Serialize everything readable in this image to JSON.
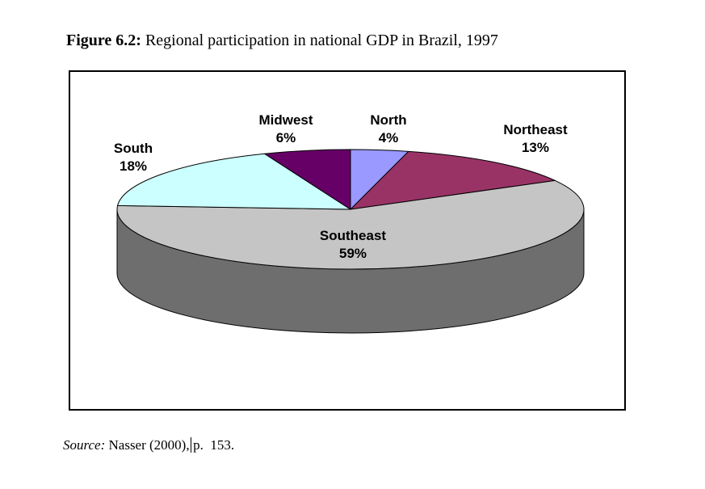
{
  "caption": {
    "prefix": "Figure 6.2:",
    "text": "Regional participation in national GDP in Brazil, 1997"
  },
  "source": {
    "label": "Source:",
    "citation": " Nasser (2000),",
    "page": "p.  153."
  },
  "chart_data": {
    "type": "pie",
    "style": "3d",
    "title": "Regional participation in national GDP in Brazil, 1997",
    "unit": "%",
    "start_angle_deg": 0,
    "direction": "clockwise",
    "legend": "none",
    "label_format": "category name + percent",
    "outline_color": "#000000",
    "slices": [
      {
        "label": "North",
        "value": 4,
        "pct": "4%",
        "color": "#9999FF"
      },
      {
        "label": "Northeast",
        "value": 13,
        "pct": "13%",
        "color": "#993366"
      },
      {
        "label": "Southeast",
        "value": 59,
        "pct": "59%",
        "color": "#C5C5C5",
        "side_color": "#6E6E6E"
      },
      {
        "label": "South",
        "value": 18,
        "pct": "18%",
        "color": "#CCFFFF"
      },
      {
        "label": "Midwest",
        "value": 6,
        "pct": "6%",
        "color": "#660066"
      }
    ]
  }
}
